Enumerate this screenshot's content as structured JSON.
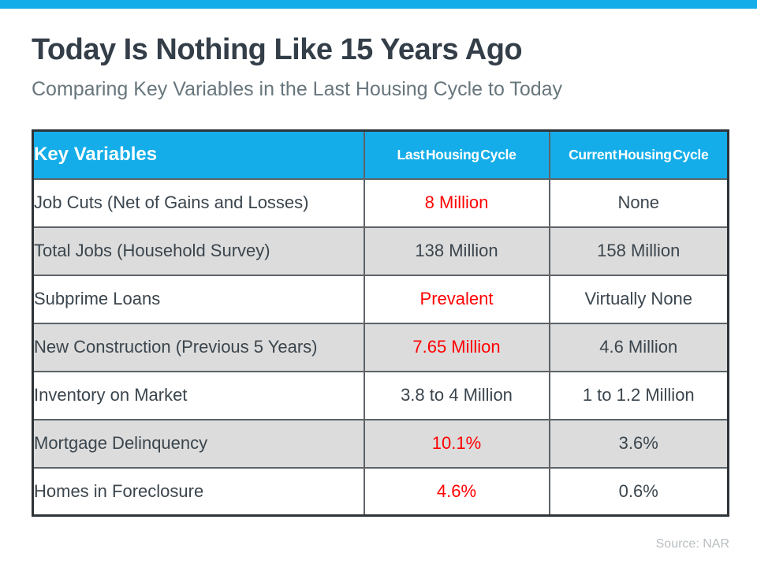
{
  "header": {
    "title": "Today Is Nothing Like 15 Years Ago",
    "subtitle": "Comparing Key Variables in the Last Housing Cycle to Today"
  },
  "table": {
    "columns": [
      "Key Variables",
      "Last Housing Cycle",
      "Current Housing Cycle"
    ],
    "rows": [
      {
        "label": "Job Cuts (Net of Gains and Losses)",
        "last": {
          "text": "8 Million",
          "red": true
        },
        "current": {
          "text": "None",
          "red": false
        },
        "shaded": false
      },
      {
        "label": "Total Jobs (Household Survey)",
        "last": {
          "text": "138 Million",
          "red": false
        },
        "current": {
          "text": "158 Million",
          "red": false
        },
        "shaded": true
      },
      {
        "label": "Subprime Loans",
        "last": {
          "text": "Prevalent",
          "red": true
        },
        "current": {
          "text": "Virtually None",
          "red": false
        },
        "shaded": false
      },
      {
        "label": "New Construction (Previous 5 Years)",
        "last": {
          "text": "7.65 Million",
          "red": true
        },
        "current": {
          "text": "4.6 Million",
          "red": false
        },
        "shaded": true
      },
      {
        "label": "Inventory on Market",
        "last": {
          "text": "3.8 to 4 Million",
          "red": false
        },
        "current": {
          "text": "1 to 1.2 Million",
          "red": false
        },
        "shaded": false
      },
      {
        "label": "Mortgage Delinquency",
        "last": {
          "text": "10.1%",
          "red": true
        },
        "current": {
          "text": "3.6%",
          "red": false
        },
        "shaded": true
      },
      {
        "label": "Homes in Foreclosure",
        "last": {
          "text": "4.6%",
          "red": true
        },
        "current": {
          "text": "0.6%",
          "red": false
        },
        "shaded": false
      }
    ]
  },
  "footer": {
    "source": "Source: NAR"
  },
  "colors": {
    "accent": "#14ADE9",
    "red": "#FF0000",
    "row_shade": "#DCDCDC",
    "title_text": "#333E48",
    "subtitle_text": "#68767D",
    "table_text": "#3B454D",
    "grid_line": "#5D6367",
    "outer_border": "#2E3338",
    "header_text": "#FFFFFF",
    "source_text": "#B9BEC1"
  },
  "chart_data": {
    "type": "table",
    "title": "Today Is Nothing Like 15 Years Ago",
    "subtitle": "Comparing Key Variables in the Last Housing Cycle to Today",
    "columns": [
      "Key Variables",
      "Last Housing Cycle",
      "Current Housing Cycle"
    ],
    "rows": [
      [
        "Job Cuts (Net of Gains and Losses)",
        "8 Million",
        "None"
      ],
      [
        "Total Jobs (Household Survey)",
        "138 Million",
        "158 Million"
      ],
      [
        "Subprime Loans",
        "Prevalent",
        "Virtually None"
      ],
      [
        "New Construction (Previous 5 Years)",
        "7.65 Million",
        "4.6 Million"
      ],
      [
        "Inventory on Market",
        "3.8 to 4 Million",
        "1 to 1.2 Million"
      ],
      [
        "Mortgage Delinquency",
        "10.1%",
        "3.6%"
      ],
      [
        "Homes in Foreclosure",
        "4.6%",
        "0.6%"
      ]
    ],
    "red_highlighted_cells_note": "Last Housing Cycle values shown in red: 8 Million, Prevalent, 7.65 Million, 10.1%, 4.6%",
    "source": "Source: NAR",
    "legend_position": "none",
    "grid": true
  }
}
